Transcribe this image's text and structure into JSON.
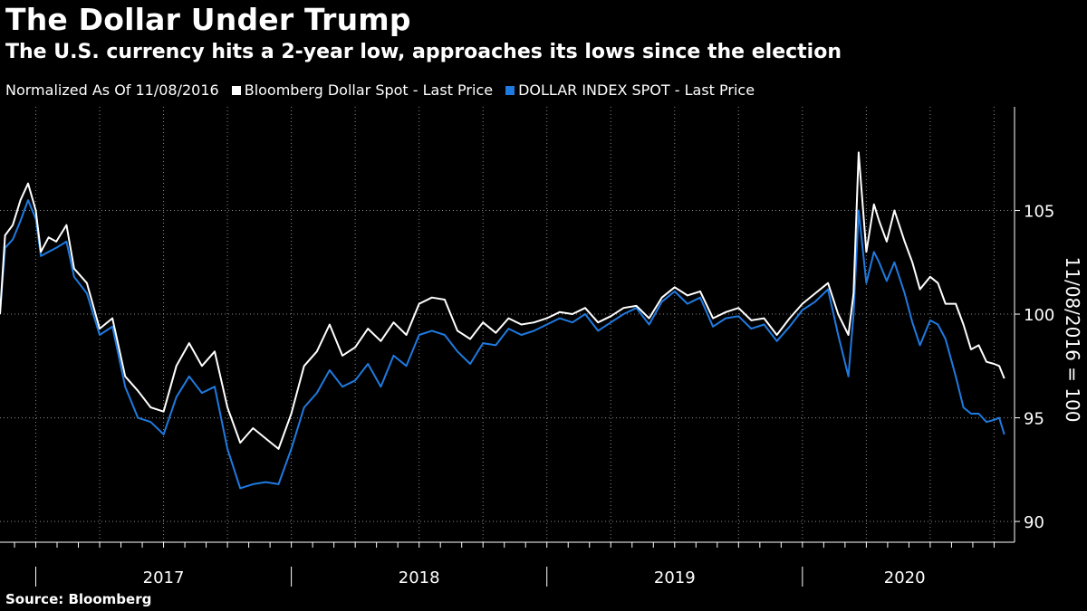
{
  "header": {
    "title": "The Dollar Under Trump",
    "subtitle": "The U.S. currency hits a 2-year low, approaches its lows since the election"
  },
  "legend": {
    "note": "Normalized As Of 11/08/2016",
    "items": [
      {
        "label": "Bloomberg Dollar Spot - Last Price",
        "color": "#ffffff"
      },
      {
        "label": "DOLLAR INDEX SPOT - Last Price",
        "color": "#1f7ae0"
      }
    ]
  },
  "footer": {
    "source": "Source: Bloomberg"
  },
  "chart_data": {
    "type": "line",
    "ylabel": "11/08/2016 = 100",
    "ylim": [
      89,
      110
    ],
    "yticks": [
      90,
      95,
      100,
      105
    ],
    "xlim": [
      2016.86,
      2020.83
    ],
    "year_labels": [
      {
        "label": "2017",
        "center": 2017.5
      },
      {
        "label": "2018",
        "center": 2018.5
      },
      {
        "label": "2019",
        "center": 2019.5
      },
      {
        "label": "2020",
        "center": 2020.4
      }
    ],
    "year_boundaries": [
      2017.0,
      2018.0,
      2019.0,
      2020.0
    ],
    "grid": true,
    "series": [
      {
        "name": "Bloomberg Dollar Spot - Last Price",
        "color": "#ffffff",
        "x": [
          2016.86,
          2016.88,
          2016.91,
          2016.94,
          2016.97,
          2017.0,
          2017.02,
          2017.05,
          2017.08,
          2017.12,
          2017.15,
          2017.2,
          2017.25,
          2017.3,
          2017.35,
          2017.4,
          2017.45,
          2017.5,
          2017.55,
          2017.6,
          2017.65,
          2017.7,
          2017.75,
          2017.8,
          2017.85,
          2017.9,
          2017.95,
          2018.0,
          2018.05,
          2018.1,
          2018.15,
          2018.2,
          2018.25,
          2018.3,
          2018.35,
          2018.4,
          2018.45,
          2018.5,
          2018.55,
          2018.6,
          2018.65,
          2018.7,
          2018.75,
          2018.8,
          2018.85,
          2018.9,
          2018.95,
          2019.0,
          2019.05,
          2019.1,
          2019.15,
          2019.2,
          2019.25,
          2019.3,
          2019.35,
          2019.4,
          2019.45,
          2019.5,
          2019.55,
          2019.6,
          2019.65,
          2019.7,
          2019.75,
          2019.8,
          2019.85,
          2019.9,
          2019.95,
          2020.0,
          2020.05,
          2020.1,
          2020.14,
          2020.18,
          2020.2,
          2020.22,
          2020.25,
          2020.28,
          2020.3,
          2020.33,
          2020.36,
          2020.4,
          2020.43,
          2020.46,
          2020.5,
          2020.53,
          2020.56,
          2020.6,
          2020.63,
          2020.66,
          2020.69,
          2020.72,
          2020.75,
          2020.77,
          2020.79
        ],
        "values": [
          100.0,
          103.8,
          104.3,
          105.5,
          106.3,
          105.0,
          103.0,
          103.7,
          103.5,
          104.3,
          102.2,
          101.5,
          99.3,
          99.8,
          97.0,
          96.3,
          95.5,
          95.3,
          97.5,
          98.6,
          97.5,
          98.2,
          95.5,
          93.8,
          94.5,
          94.0,
          93.5,
          95.2,
          97.5,
          98.2,
          99.5,
          98.0,
          98.4,
          99.3,
          98.7,
          99.6,
          99.0,
          100.5,
          100.8,
          100.7,
          99.2,
          98.8,
          99.6,
          99.1,
          99.8,
          99.5,
          99.6,
          99.8,
          100.1,
          100.0,
          100.3,
          99.6,
          99.9,
          100.3,
          100.4,
          99.8,
          100.8,
          101.3,
          100.9,
          101.1,
          99.8,
          100.1,
          100.3,
          99.7,
          99.8,
          99.0,
          99.8,
          100.5,
          101.0,
          101.5,
          100.0,
          99.0,
          101.0,
          107.8,
          103.0,
          105.3,
          104.5,
          103.5,
          105.0,
          103.5,
          102.5,
          101.2,
          101.8,
          101.5,
          100.5,
          100.5,
          99.5,
          98.3,
          98.5,
          97.7,
          97.6,
          97.5,
          96.9
        ]
      },
      {
        "name": "DOLLAR INDEX SPOT - Last Price",
        "color": "#1f7ae0",
        "x": [
          2016.86,
          2016.88,
          2016.91,
          2016.94,
          2016.97,
          2017.0,
          2017.02,
          2017.05,
          2017.08,
          2017.12,
          2017.15,
          2017.2,
          2017.25,
          2017.3,
          2017.35,
          2017.4,
          2017.45,
          2017.5,
          2017.55,
          2017.6,
          2017.65,
          2017.7,
          2017.75,
          2017.8,
          2017.85,
          2017.9,
          2017.95,
          2018.0,
          2018.05,
          2018.1,
          2018.15,
          2018.2,
          2018.25,
          2018.3,
          2018.35,
          2018.4,
          2018.45,
          2018.5,
          2018.55,
          2018.6,
          2018.65,
          2018.7,
          2018.75,
          2018.8,
          2018.85,
          2018.9,
          2018.95,
          2019.0,
          2019.05,
          2019.1,
          2019.15,
          2019.2,
          2019.25,
          2019.3,
          2019.35,
          2019.4,
          2019.45,
          2019.5,
          2019.55,
          2019.6,
          2019.65,
          2019.7,
          2019.75,
          2019.8,
          2019.85,
          2019.9,
          2019.95,
          2020.0,
          2020.05,
          2020.1,
          2020.14,
          2020.18,
          2020.2,
          2020.22,
          2020.25,
          2020.28,
          2020.3,
          2020.33,
          2020.36,
          2020.4,
          2020.43,
          2020.46,
          2020.5,
          2020.53,
          2020.56,
          2020.6,
          2020.63,
          2020.66,
          2020.69,
          2020.72,
          2020.75,
          2020.77,
          2020.79
        ],
        "values": [
          100.0,
          103.2,
          103.6,
          104.5,
          105.5,
          104.6,
          102.8,
          103.0,
          103.2,
          103.5,
          101.8,
          101.0,
          99.0,
          99.4,
          96.5,
          95.0,
          94.8,
          94.2,
          96.0,
          97.0,
          96.2,
          96.5,
          93.5,
          91.6,
          91.8,
          91.9,
          91.8,
          93.5,
          95.5,
          96.2,
          97.3,
          96.5,
          96.8,
          97.6,
          96.5,
          98.0,
          97.5,
          99.0,
          99.2,
          99.0,
          98.2,
          97.6,
          98.6,
          98.5,
          99.3,
          99.0,
          99.2,
          99.5,
          99.8,
          99.6,
          100.0,
          99.2,
          99.6,
          100.0,
          100.3,
          99.5,
          100.6,
          101.1,
          100.5,
          100.8,
          99.4,
          99.8,
          99.9,
          99.3,
          99.5,
          98.7,
          99.4,
          100.2,
          100.6,
          101.2,
          99.0,
          97.0,
          100.0,
          105.0,
          101.5,
          103.0,
          102.5,
          101.6,
          102.5,
          101.0,
          99.6,
          98.5,
          99.7,
          99.5,
          98.8,
          97.0,
          95.5,
          95.2,
          95.2,
          94.8,
          94.9,
          95.0,
          94.2
        ]
      }
    ]
  }
}
